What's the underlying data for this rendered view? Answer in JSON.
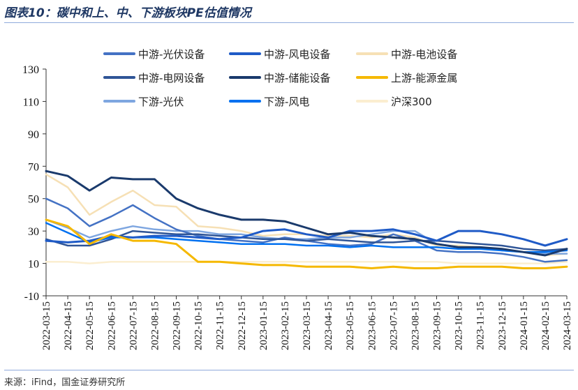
{
  "header": {
    "title": "图表10：碳中和上、中、下游板块PE估值情况"
  },
  "footer": {
    "source": "来源：iFind，国金证券研究所"
  },
  "chart_data": {
    "type": "line",
    "title": "",
    "xlabel": "",
    "ylabel": "",
    "ylim": [
      -10,
      130
    ],
    "yticks": [
      -10,
      10,
      30,
      50,
      70,
      90,
      110,
      130
    ],
    "legend_position": "top",
    "grid": false,
    "x": [
      "2022-03-15",
      "2022-04-15",
      "2022-05-15",
      "2022-06-15",
      "2022-07-15",
      "2022-08-15",
      "2022-09-15",
      "2022-10-15",
      "2022-11-15",
      "2022-12-15",
      "2023-01-15",
      "2023-02-15",
      "2023-03-15",
      "2023-04-15",
      "2023-05-15",
      "2023-06-15",
      "2023-07-15",
      "2023-08-15",
      "2023-09-15",
      "2023-10-15",
      "2023-11-15",
      "2023-12-15",
      "2024-01-15",
      "2024-02-15",
      "2024-03-15"
    ],
    "series": [
      {
        "name": "中游-光伏设备",
        "color": "#4472c4",
        "width": 2.5,
        "values": [
          50,
          44,
          33,
          39,
          46,
          38,
          31,
          27,
          25,
          24,
          23,
          26,
          24,
          22,
          21,
          22,
          28,
          24,
          18,
          17,
          17,
          16,
          14,
          11,
          12
        ]
      },
      {
        "name": "中游-风电设备",
        "color": "#1f5bc7",
        "width": 3,
        "values": [
          24,
          23,
          24,
          27,
          26,
          27,
          27,
          26,
          25,
          26,
          30,
          31,
          28,
          26,
          30,
          30,
          31,
          28,
          24,
          30,
          30,
          28,
          25,
          21,
          25
        ]
      },
      {
        "name": "中游-电池设备",
        "color": "#f6e0b5",
        "width": 2.5,
        "values": [
          65,
          57,
          40,
          48,
          55,
          46,
          45,
          33,
          32,
          30,
          27,
          28,
          28,
          27,
          27,
          26,
          28,
          26,
          21,
          21,
          20,
          19,
          17,
          15,
          16
        ]
      },
      {
        "name": "中游-电网设备",
        "color": "#2f5597",
        "width": 2.5,
        "values": [
          25,
          21,
          21,
          25,
          30,
          29,
          28,
          28,
          27,
          26,
          25,
          25,
          24,
          25,
          24,
          23,
          23,
          24,
          24,
          23,
          22,
          21,
          19,
          18,
          19
        ]
      },
      {
        "name": "中游-储能设备",
        "color": "#1a3a6c",
        "width": 3,
        "values": [
          67,
          64,
          55,
          63,
          62,
          62,
          50,
          44,
          40,
          37,
          37,
          36,
          32,
          28,
          29,
          27,
          26,
          25,
          22,
          20,
          20,
          19,
          17,
          15,
          19
        ]
      },
      {
        "name": "上游-能源金属",
        "color": "#f5b800",
        "width": 3,
        "values": [
          37,
          33,
          22,
          28,
          24,
          24,
          22,
          11,
          11,
          10,
          9,
          9,
          8,
          8,
          8,
          7,
          8,
          7,
          7,
          8,
          8,
          8,
          7,
          7,
          8
        ]
      },
      {
        "name": "下游-光伏",
        "color": "#7ea6e0",
        "width": 2.5,
        "values": [
          37,
          32,
          26,
          30,
          33,
          31,
          30,
          30,
          28,
          28,
          26,
          25,
          25,
          26,
          26,
          28,
          30,
          30,
          22,
          20,
          20,
          18,
          17,
          16,
          16
        ]
      },
      {
        "name": "下游-风电",
        "color": "#0070f0",
        "width": 2.5,
        "values": [
          35,
          29,
          23,
          26,
          26,
          26,
          25,
          24,
          23,
          22,
          22,
          22,
          21,
          21,
          20,
          21,
          20,
          20,
          20,
          19,
          19,
          18,
          17,
          17,
          18
        ]
      },
      {
        "name": "沪深300",
        "color": "#fbeed0",
        "width": 2.5,
        "values": [
          11,
          11,
          10,
          11,
          11,
          11,
          11,
          11,
          11,
          11,
          11,
          11,
          11,
          11,
          11,
          11,
          11,
          11,
          11,
          10,
          10,
          10,
          10,
          10,
          11
        ]
      }
    ]
  }
}
